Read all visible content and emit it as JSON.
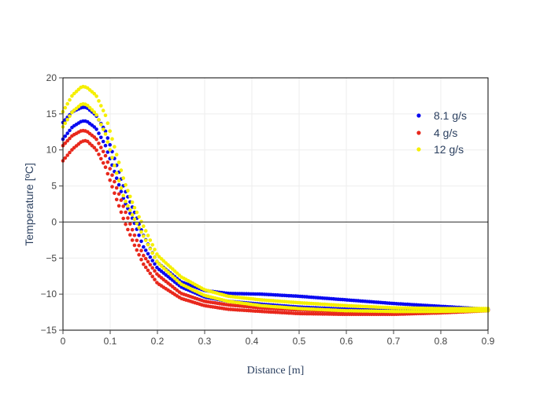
{
  "chart_data": {
    "type": "scatter",
    "title": "",
    "xlabel": "Distance [m]",
    "ylabel": "Temperature [ºC]",
    "xlim": [
      0,
      0.9
    ],
    "ylim": [
      -15,
      20
    ],
    "xticks": [
      0,
      0.1,
      0.2,
      0.3,
      0.4,
      0.5,
      0.6,
      0.7,
      0.8,
      0.9
    ],
    "xtick_labels": [
      "0",
      "0.1",
      "0.2",
      "0.3",
      "0.4",
      "0.5",
      "0.6",
      "0.7",
      "0.8",
      "0.9"
    ],
    "yticks": [
      -15,
      -10,
      -5,
      0,
      5,
      10,
      15,
      20
    ],
    "ytick_labels": [
      "−15",
      "−10",
      "−5",
      "0",
      "5",
      "10",
      "15",
      "20"
    ],
    "grid": true,
    "zero_line": true,
    "legend_position": "top-right",
    "series": [
      {
        "name": "8.1 g/s",
        "color": "#0a0af0",
        "bands": [
          [
            [
              0,
              13.8
            ],
            [
              0.02,
              15.3
            ],
            [
              0.04,
              15.9
            ],
            [
              0.05,
              15.9
            ],
            [
              0.07,
              14.8
            ],
            [
              0.09,
              12.6
            ],
            [
              0.11,
              8.6
            ],
            [
              0.13,
              4.6
            ],
            [
              0.15,
              1.6
            ],
            [
              0.17,
              -1.8
            ],
            [
              0.2,
              -5.6
            ],
            [
              0.25,
              -8.3
            ],
            [
              0.3,
              -9.5
            ],
            [
              0.35,
              -9.9
            ],
            [
              0.42,
              -10.0
            ],
            [
              0.5,
              -10.3
            ],
            [
              0.6,
              -10.8
            ],
            [
              0.7,
              -11.3
            ],
            [
              0.8,
              -11.7
            ],
            [
              0.9,
              -12.1
            ]
          ],
          [
            [
              0,
              11.5
            ],
            [
              0.02,
              13.2
            ],
            [
              0.04,
              14.0
            ],
            [
              0.05,
              14.0
            ],
            [
              0.07,
              13.0
            ],
            [
              0.09,
              10.6
            ],
            [
              0.11,
              6.8
            ],
            [
              0.13,
              2.9
            ],
            [
              0.15,
              0.1
            ],
            [
              0.17,
              -3.4
            ],
            [
              0.2,
              -6.4
            ],
            [
              0.25,
              -9.0
            ],
            [
              0.3,
              -10.4
            ],
            [
              0.35,
              -11.0
            ],
            [
              0.42,
              -11.4
            ],
            [
              0.5,
              -11.8
            ],
            [
              0.6,
              -12.1
            ],
            [
              0.7,
              -12.3
            ],
            [
              0.8,
              -12.3
            ],
            [
              0.9,
              -12.2
            ]
          ]
        ]
      },
      {
        "name": "4 g/s",
        "color": "#e8281c",
        "bands": [
          [
            [
              0,
              10.6
            ],
            [
              0.02,
              12.0
            ],
            [
              0.04,
              12.7
            ],
            [
              0.05,
              12.6
            ],
            [
              0.07,
              11.6
            ],
            [
              0.09,
              9.2
            ],
            [
              0.11,
              5.4
            ],
            [
              0.13,
              1.8
            ],
            [
              0.15,
              -1.6
            ],
            [
              0.17,
              -4.6
            ],
            [
              0.2,
              -7.3
            ],
            [
              0.25,
              -9.9
            ],
            [
              0.3,
              -11.0
            ],
            [
              0.35,
              -11.5
            ],
            [
              0.42,
              -11.9
            ],
            [
              0.5,
              -12.2
            ],
            [
              0.6,
              -12.4
            ],
            [
              0.7,
              -12.5
            ],
            [
              0.8,
              -12.4
            ],
            [
              0.9,
              -12.2
            ]
          ],
          [
            [
              0,
              8.5
            ],
            [
              0.02,
              10.1
            ],
            [
              0.04,
              11.2
            ],
            [
              0.05,
              11.3
            ],
            [
              0.07,
              10.1
            ],
            [
              0.09,
              7.6
            ],
            [
              0.11,
              3.8
            ],
            [
              0.13,
              0.1
            ],
            [
              0.15,
              -3.0
            ],
            [
              0.17,
              -5.8
            ],
            [
              0.2,
              -8.5
            ],
            [
              0.25,
              -10.6
            ],
            [
              0.3,
              -11.6
            ],
            [
              0.35,
              -12.1
            ],
            [
              0.42,
              -12.4
            ],
            [
              0.5,
              -12.7
            ],
            [
              0.6,
              -12.8
            ],
            [
              0.7,
              -12.8
            ],
            [
              0.8,
              -12.6
            ],
            [
              0.9,
              -12.3
            ]
          ]
        ]
      },
      {
        "name": "12 g/s",
        "color": "#f5ef00",
        "bands": [
          [
            [
              0,
              15.3
            ],
            [
              0.02,
              17.6
            ],
            [
              0.04,
              18.8
            ],
            [
              0.05,
              18.7
            ],
            [
              0.07,
              17.6
            ],
            [
              0.09,
              14.8
            ],
            [
              0.11,
              10.2
            ],
            [
              0.13,
              5.6
            ],
            [
              0.15,
              2.2
            ],
            [
              0.17,
              -0.5
            ],
            [
              0.2,
              -4.6
            ],
            [
              0.25,
              -7.6
            ],
            [
              0.3,
              -9.4
            ],
            [
              0.35,
              -10.3
            ],
            [
              0.42,
              -10.8
            ],
            [
              0.5,
              -11.2
            ],
            [
              0.6,
              -11.6
            ],
            [
              0.7,
              -11.9
            ],
            [
              0.8,
              -12.0
            ],
            [
              0.9,
              -12.0
            ]
          ],
          [
            [
              0,
              13.2
            ],
            [
              0.02,
              15.3
            ],
            [
              0.04,
              16.4
            ],
            [
              0.05,
              16.3
            ],
            [
              0.07,
              15.0
            ],
            [
              0.09,
              12.2
            ],
            [
              0.11,
              7.6
            ],
            [
              0.13,
              3.2
            ],
            [
              0.15,
              0.6
            ],
            [
              0.17,
              -1.9
            ],
            [
              0.2,
              -5.6
            ],
            [
              0.25,
              -8.6
            ],
            [
              0.3,
              -10.2
            ],
            [
              0.35,
              -11.0
            ],
            [
              0.42,
              -11.6
            ],
            [
              0.5,
              -12.0
            ],
            [
              0.6,
              -12.3
            ],
            [
              0.7,
              -12.4
            ],
            [
              0.8,
              -12.4
            ],
            [
              0.9,
              -12.3
            ]
          ]
        ]
      }
    ]
  },
  "colors": {
    "background": "#ffffff",
    "grid": "#eeeeee",
    "zero_line": "#444444",
    "axis_title": "#2a3f5f",
    "tick_label": "#444444"
  }
}
